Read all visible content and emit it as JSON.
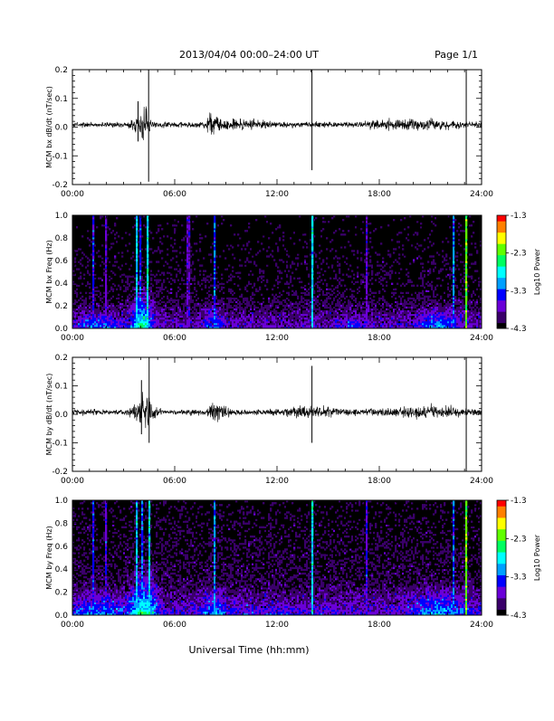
{
  "header": {
    "title": "2013/04/04  00:00–24:00 UT",
    "page": "Page 1/1"
  },
  "footer": {
    "xlabel": "Universal Time (hh:mm)"
  },
  "colorbar": {
    "label": "Log10 Power",
    "ticks": [
      "-1.3",
      "-2.3",
      "-3.3",
      "-4.3"
    ],
    "range": [
      -4.3,
      -1.3
    ],
    "colors": [
      "#000000",
      "#3a006a",
      "#6a00d8",
      "#0000ff",
      "#00a0ff",
      "#00ffff",
      "#00ff60",
      "#60ff00",
      "#ffff00",
      "#ff8000",
      "#ff0000"
    ]
  },
  "chart_data": [
    {
      "type": "line",
      "ylabel": "MCM bx dB/dt (nT/sec)",
      "xlim": [
        0,
        24
      ],
      "ylim": [
        -0.2,
        0.2
      ],
      "xticks": [
        "00:00",
        "06:00",
        "12:00",
        "18:00",
        "24:00"
      ],
      "yticks": [
        "0.2",
        "0.1",
        "0.0",
        "-0.1",
        "-0.2"
      ],
      "baseline_noise": 0.008,
      "activity": [
        {
          "center": 4.1,
          "width": 0.5,
          "amp": 0.045
        },
        {
          "center": 8.3,
          "width": 0.45,
          "amp": 0.03
        },
        {
          "center": 10.0,
          "width": 1.5,
          "amp": 0.01
        },
        {
          "center": 20.0,
          "width": 2.5,
          "amp": 0.012
        }
      ],
      "spikes": [
        {
          "t": 3.85,
          "min": -0.05,
          "max": 0.09
        },
        {
          "t": 4.47,
          "min": -0.19,
          "max": 0.2
        },
        {
          "t": 14.05,
          "min": -0.15,
          "max": 0.2
        },
        {
          "t": 23.1,
          "min": -0.2,
          "max": 0.2
        }
      ]
    },
    {
      "type": "heatmap",
      "ylabel": "MCM bx Freq (Hz)",
      "xlim": [
        0,
        24
      ],
      "ylim": [
        0,
        1.0
      ],
      "xticks": [
        "00:00",
        "06:00",
        "12:00",
        "18:00",
        "24:00"
      ],
      "yticks": [
        "1.0",
        "0.8",
        "0.6",
        "0.4",
        "0.2",
        "0.0"
      ],
      "zlim": [
        -4.3,
        -1.3
      ],
      "background": -4.2,
      "vertical_lines": [
        {
          "t": 1.2,
          "level": -3.5
        },
        {
          "t": 2.0,
          "level": -3.7
        },
        {
          "t": 3.75,
          "level": -3.0
        },
        {
          "t": 4.0,
          "level": -3.4
        },
        {
          "t": 4.45,
          "level": -2.8
        },
        {
          "t": 6.8,
          "level": -3.8
        },
        {
          "t": 8.3,
          "level": -3.3
        },
        {
          "t": 14.05,
          "level": -2.9
        },
        {
          "t": 17.3,
          "level": -3.7
        },
        {
          "t": 22.4,
          "level": -3.2
        },
        {
          "t": 23.1,
          "level": -2.2
        }
      ],
      "low_freq_bands": [
        {
          "center": 1.5,
          "width": 1.5,
          "level": -3.6,
          "fmax": 0.2
        },
        {
          "center": 4.1,
          "width": 0.6,
          "level": -3.0,
          "fmax": 0.5
        },
        {
          "center": 8.3,
          "width": 0.6,
          "level": -3.6,
          "fmax": 0.3
        },
        {
          "center": 16.5,
          "width": 1.0,
          "level": -3.8,
          "fmax": 0.15
        },
        {
          "center": 21.5,
          "width": 1.2,
          "level": -3.5,
          "fmax": 0.25
        }
      ]
    },
    {
      "type": "line",
      "ylabel": "MCM by dB/dt (nT/sec)",
      "xlim": [
        0,
        24
      ],
      "ylim": [
        -0.2,
        0.2
      ],
      "xticks": [
        "00:00",
        "06:00",
        "12:00",
        "18:00",
        "24:00"
      ],
      "yticks": [
        "0.2",
        "0.1",
        "0.0",
        "-0.1",
        "-0.2"
      ],
      "baseline_noise": 0.009,
      "activity": [
        {
          "center": 4.2,
          "width": 0.55,
          "amp": 0.05
        },
        {
          "center": 8.5,
          "width": 0.5,
          "amp": 0.025
        },
        {
          "center": 14.0,
          "width": 1.5,
          "amp": 0.01
        },
        {
          "center": 20.5,
          "width": 2.5,
          "amp": 0.012
        }
      ],
      "spikes": [
        {
          "t": 4.05,
          "min": -0.07,
          "max": 0.12
        },
        {
          "t": 4.5,
          "min": -0.1,
          "max": 0.2
        },
        {
          "t": 14.05,
          "min": -0.1,
          "max": 0.17
        },
        {
          "t": 23.1,
          "min": -0.2,
          "max": 0.2
        }
      ]
    },
    {
      "type": "heatmap",
      "ylabel": "MCM by Freq (Hz)",
      "xlim": [
        0,
        24
      ],
      "ylim": [
        0,
        1.0
      ],
      "xticks": [
        "00:00",
        "06:00",
        "12:00",
        "18:00",
        "24:00"
      ],
      "yticks": [
        "1.0",
        "0.8",
        "0.6",
        "0.4",
        "0.2",
        "0.0"
      ],
      "zlim": [
        -4.3,
        -1.3
      ],
      "background": -4.1,
      "vertical_lines": [
        {
          "t": 1.2,
          "level": -3.4
        },
        {
          "t": 2.0,
          "level": -3.6
        },
        {
          "t": 3.75,
          "level": -3.0
        },
        {
          "t": 4.1,
          "level": -3.3
        },
        {
          "t": 4.5,
          "level": -2.9
        },
        {
          "t": 8.3,
          "level": -3.2
        },
        {
          "t": 14.05,
          "level": -2.9
        },
        {
          "t": 17.3,
          "level": -3.5
        },
        {
          "t": 22.4,
          "level": -3.3
        },
        {
          "t": 23.1,
          "level": -2.2
        }
      ],
      "low_freq_bands": [
        {
          "center": 1.5,
          "width": 1.8,
          "level": -3.5,
          "fmax": 0.25
        },
        {
          "center": 4.2,
          "width": 0.7,
          "level": -2.9,
          "fmax": 0.5
        },
        {
          "center": 8.3,
          "width": 0.7,
          "level": -3.5,
          "fmax": 0.3
        },
        {
          "center": 12.0,
          "width": 3.0,
          "level": -3.8,
          "fmax": 0.12
        },
        {
          "center": 21.5,
          "width": 1.5,
          "level": -3.4,
          "fmax": 0.3
        }
      ]
    }
  ]
}
